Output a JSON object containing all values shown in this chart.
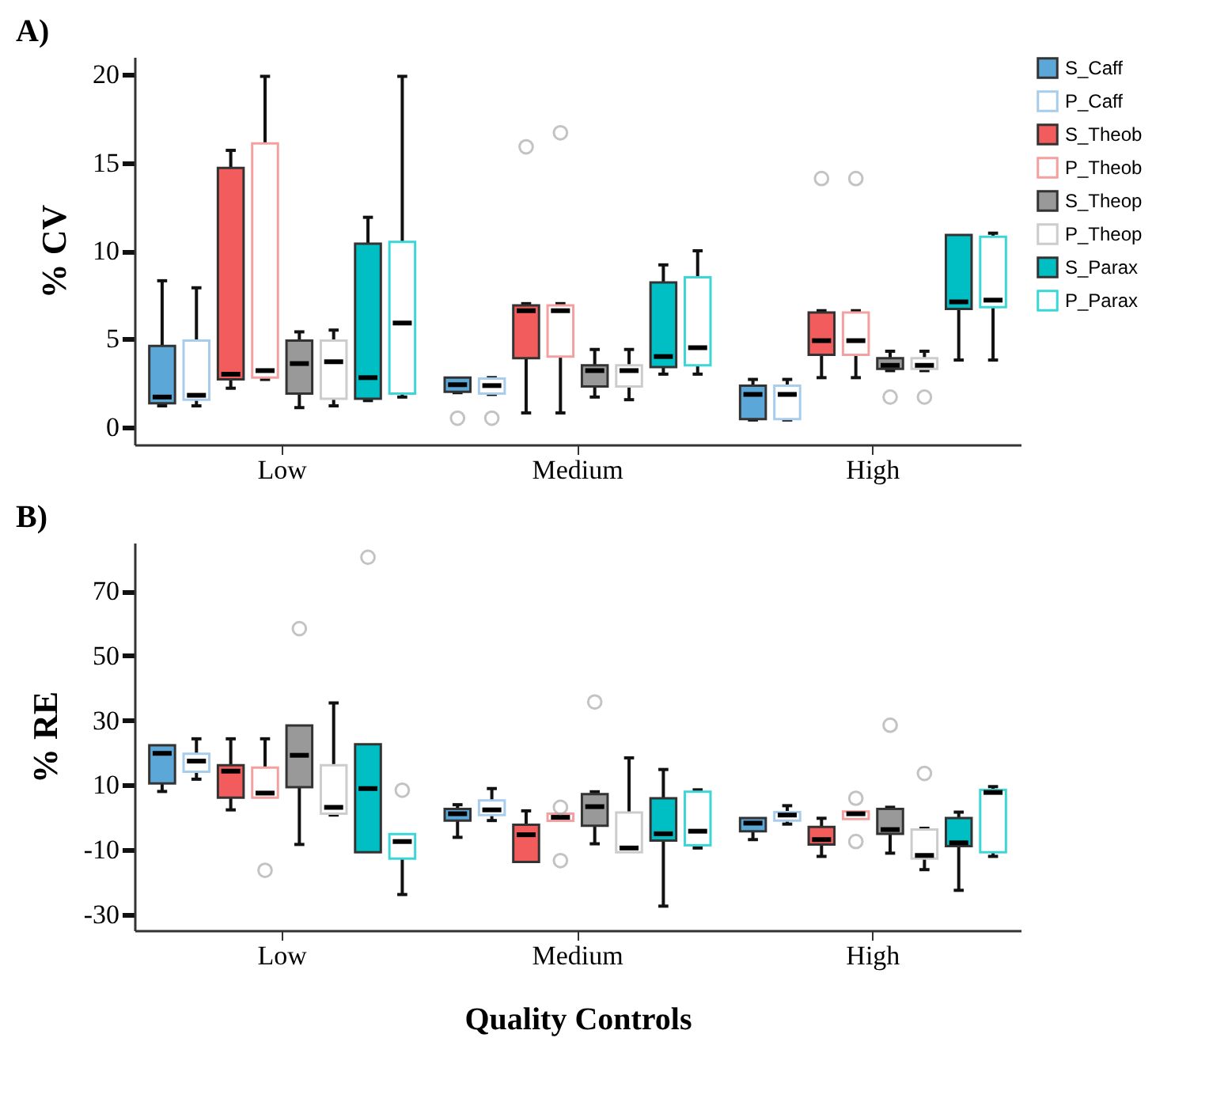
{
  "chart_data": [
    {
      "type": "box",
      "title": "A)",
      "ylabel": "% CV",
      "categories": [
        "Low",
        "Medium",
        "High"
      ],
      "ylim": [
        -1,
        21
      ],
      "yticks": [
        0,
        5,
        10,
        15,
        20
      ],
      "grid": false,
      "legend": "right",
      "series": [
        {
          "name": "S_Caff",
          "color": "#5ba8d8",
          "boxes": [
            {
              "low": 1.2,
              "q1": 1.35,
              "median": 1.7,
              "q3": 4.6,
              "high": 8.3
            },
            {
              "low": 1.95,
              "q1": 2.0,
              "median": 2.4,
              "q3": 2.8,
              "high": 2.8,
              "outliers": [
                0.5
              ]
            },
            {
              "low": 0.4,
              "q1": 0.45,
              "median": 1.85,
              "q3": 2.35,
              "high": 2.7
            }
          ]
        },
        {
          "name": "P_Caff",
          "color": "#a8ccec",
          "boxes": [
            {
              "low": 1.2,
              "q1": 1.55,
              "median": 1.8,
              "q3": 4.9,
              "high": 7.9
            },
            {
              "low": 1.85,
              "q1": 1.9,
              "median": 2.35,
              "q3": 2.75,
              "high": 2.8,
              "outliers": [
                0.5
              ]
            },
            {
              "low": 0.4,
              "q1": 0.45,
              "median": 1.85,
              "q3": 2.35,
              "high": 2.7
            }
          ]
        },
        {
          "name": "S_Theob",
          "color": "#f25c5c",
          "boxes": [
            {
              "low": 2.2,
              "q1": 2.7,
              "median": 3.0,
              "q3": 14.7,
              "high": 15.7
            },
            {
              "low": 0.8,
              "q1": 3.9,
              "median": 6.6,
              "q3": 6.9,
              "high": 7.0,
              "outliers": [
                15.9
              ]
            },
            {
              "low": 2.8,
              "q1": 4.1,
              "median": 4.9,
              "q3": 6.5,
              "high": 6.6,
              "outliers": [
                14.1
              ]
            }
          ]
        },
        {
          "name": "P_Theob",
          "color": "#f5a0a0",
          "boxes": [
            {
              "low": 2.7,
              "q1": 2.8,
              "median": 3.2,
              "q3": 16.1,
              "high": 19.9
            },
            {
              "low": 0.8,
              "q1": 4.0,
              "median": 6.6,
              "q3": 6.9,
              "high": 7.0,
              "outliers": [
                16.7
              ]
            },
            {
              "low": 2.8,
              "q1": 4.1,
              "median": 4.9,
              "q3": 6.5,
              "high": 6.6,
              "outliers": [
                14.1
              ]
            }
          ]
        },
        {
          "name": "S_Theop",
          "color": "#999999",
          "boxes": [
            {
              "low": 1.1,
              "q1": 1.9,
              "median": 3.6,
              "q3": 4.9,
              "high": 5.4
            },
            {
              "low": 1.7,
              "q1": 2.3,
              "median": 3.2,
              "q3": 3.5,
              "high": 4.4
            },
            {
              "low": 3.2,
              "q1": 3.3,
              "median": 3.5,
              "q3": 3.9,
              "high": 4.3,
              "outliers": [
                1.7
              ]
            }
          ]
        },
        {
          "name": "P_Theop",
          "color": "#cccccc",
          "boxes": [
            {
              "low": 1.2,
              "q1": 1.6,
              "median": 3.7,
              "q3": 4.9,
              "high": 5.5
            },
            {
              "low": 1.55,
              "q1": 2.3,
              "median": 3.2,
              "q3": 3.5,
              "high": 4.4
            },
            {
              "low": 3.2,
              "q1": 3.3,
              "median": 3.5,
              "q3": 3.9,
              "high": 4.3,
              "outliers": [
                1.7
              ]
            }
          ]
        },
        {
          "name": "S_Parax",
          "color": "#00bfc4",
          "boxes": [
            {
              "low": 1.5,
              "q1": 1.6,
              "median": 2.8,
              "q3": 10.4,
              "high": 11.9
            },
            {
              "low": 3.0,
              "q1": 3.4,
              "median": 4.0,
              "q3": 8.2,
              "high": 9.2
            },
            {
              "low": 3.8,
              "q1": 6.7,
              "median": 7.1,
              "q3": 10.9,
              "high": 10.9
            }
          ]
        },
        {
          "name": "P_Parax",
          "color": "#3dd6d6",
          "boxes": [
            {
              "low": 1.7,
              "q1": 1.9,
              "median": 5.9,
              "q3": 10.5,
              "high": 19.9
            },
            {
              "low": 3.0,
              "q1": 3.5,
              "median": 4.5,
              "q3": 8.5,
              "high": 10.0
            },
            {
              "low": 3.8,
              "q1": 6.8,
              "median": 7.2,
              "q3": 10.8,
              "high": 11.0
            }
          ]
        }
      ]
    },
    {
      "type": "box",
      "title": "B)",
      "ylabel": "% RE",
      "xlabel": "Quality Controls",
      "categories": [
        "Low",
        "Medium",
        "High"
      ],
      "ylim": [
        -35,
        85
      ],
      "yticks": [
        -30,
        -10,
        10,
        30,
        50,
        70
      ],
      "grid": false,
      "legend": "right",
      "series": [
        {
          "name": "S_Caff",
          "color": "#5ba8d8",
          "boxes": [
            {
              "low": 8.0,
              "q1": 10.5,
              "median": 19.8,
              "q3": 22.3,
              "high": 22.3
            },
            {
              "low": -6.2,
              "q1": -1.0,
              "median": 1.1,
              "q3": 2.6,
              "high": 3.9
            },
            {
              "low": -6.9,
              "q1": -4.3,
              "median": -1.8,
              "q3": -0.2,
              "high": -0.2
            }
          ]
        },
        {
          "name": "P_Caff",
          "color": "#a8ccec",
          "boxes": [
            {
              "low": 11.8,
              "q1": 14.1,
              "median": 17.4,
              "q3": 19.7,
              "high": 24.3
            },
            {
              "low": -1.0,
              "q1": 0.7,
              "median": 2.3,
              "q3": 5.2,
              "high": 8.9
            },
            {
              "low": -2.1,
              "q1": -1.0,
              "median": 0.7,
              "q3": 1.6,
              "high": 3.6
            }
          ]
        },
        {
          "name": "S_Theob",
          "color": "#f25c5c",
          "boxes": [
            {
              "low": 2.3,
              "q1": 6.1,
              "median": 14.3,
              "q3": 16.1,
              "high": 24.3
            },
            {
              "low": -13.8,
              "q1": -13.8,
              "median": -5.4,
              "q3": -2.3,
              "high": 2.0
            },
            {
              "low": -12.1,
              "q1": -8.4,
              "median": -6.9,
              "q3": -3.0,
              "high": -0.3
            }
          ]
        },
        {
          "name": "P_Theob",
          "color": "#f5a0a0",
          "boxes": [
            {
              "low": 6.1,
              "q1": 6.1,
              "median": 7.5,
              "q3": 15.4,
              "high": 24.3,
              "outliers": [
                -16.4
              ]
            },
            {
              "low": -1.1,
              "q1": -1.1,
              "median": 0.0,
              "q3": 1.1,
              "high": 1.1,
              "outliers": [
                3.1,
                -13.4
              ]
            },
            {
              "low": -0.5,
              "q1": -0.5,
              "median": 1.1,
              "q3": 1.8,
              "high": 1.8,
              "outliers": [
                5.9,
                -7.5
              ]
            }
          ]
        },
        {
          "name": "S_Theop",
          "color": "#999999",
          "boxes": [
            {
              "low": -8.4,
              "q1": 9.3,
              "median": 19.2,
              "q3": 28.4,
              "high": 28.4,
              "outliers": [
                58.4
              ]
            },
            {
              "low": -8.2,
              "q1": -2.6,
              "median": 3.3,
              "q3": 7.2,
              "high": 7.9,
              "outliers": [
                35.7
              ]
            },
            {
              "low": -11.1,
              "q1": -5.1,
              "median": -3.8,
              "q3": 2.6,
              "high": 3.1,
              "outliers": [
                28.5
              ]
            }
          ]
        },
        {
          "name": "P_Theop",
          "color": "#cccccc",
          "boxes": [
            {
              "low": 0.7,
              "q1": 1.1,
              "median": 3.1,
              "q3": 16.1,
              "high": 35.4
            },
            {
              "low": -10.8,
              "q1": -10.8,
              "median": -9.5,
              "q3": 1.5,
              "high": 18.4
            },
            {
              "low": -16.2,
              "q1": -12.8,
              "median": -11.8,
              "q3": -3.8,
              "high": -3.4,
              "outliers": [
                13.6
              ]
            }
          ]
        },
        {
          "name": "S_Parax",
          "color": "#00bfc4",
          "boxes": [
            {
              "low": -10.8,
              "q1": -10.8,
              "median": 8.9,
              "q3": 22.6,
              "high": 22.6,
              "outliers": [
                80.5
              ]
            },
            {
              "low": -27.5,
              "q1": -7.2,
              "median": -5.1,
              "q3": 5.9,
              "high": 14.8
            },
            {
              "low": -22.6,
              "q1": -8.9,
              "median": -7.9,
              "q3": -0.2,
              "high": 1.6
            }
          ]
        },
        {
          "name": "P_Parax",
          "color": "#3dd6d6",
          "boxes": [
            {
              "low": -23.9,
              "q1": -12.8,
              "median": -7.5,
              "q3": -5.2,
              "high": -5.6,
              "outliers": [
                8.4
              ]
            },
            {
              "low": -9.5,
              "q1": -8.7,
              "median": -4.3,
              "q3": 7.9,
              "high": 8.5
            },
            {
              "low": -12.1,
              "q1": -10.8,
              "median": 7.7,
              "q3": 8.5,
              "high": 9.5
            }
          ]
        }
      ]
    }
  ]
}
